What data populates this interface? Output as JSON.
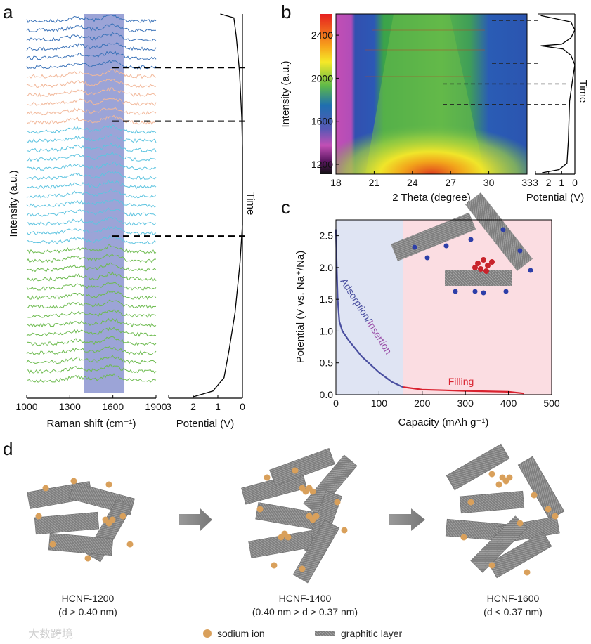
{
  "panels": {
    "a": "a",
    "b": "b",
    "c": "c",
    "d": "d"
  },
  "chart_data": [
    {
      "id": "a-raman",
      "type": "line",
      "xlabel": "Raman shift (cm⁻¹)",
      "ylabel": "Intensity (a.u.)",
      "xlim": [
        1000,
        1900
      ],
      "xticks": [
        "1000",
        "1300",
        "1600",
        "1900"
      ],
      "highlight_range": [
        1400,
        1680
      ],
      "highlight_color": "#7b86c9",
      "trace_groups": [
        {
          "name": "group1",
          "count": 6,
          "color": "#3a72b8"
        },
        {
          "name": "group2",
          "count": 6,
          "color": "#f2b89a"
        },
        {
          "name": "group3",
          "count": 13,
          "color": "#5ec4e0"
        },
        {
          "name": "group4",
          "count": 15,
          "color": "#6dbb4f"
        }
      ]
    },
    {
      "id": "a-potential",
      "type": "line",
      "xlabel": "Potential (V)",
      "side_label": "Time",
      "xlim": [
        3,
        0
      ],
      "xticks": [
        "3",
        "2",
        "1",
        "0"
      ],
      "points": [
        [
          0.9,
          0
        ],
        [
          0.35,
          0.01
        ],
        [
          0.25,
          0.06
        ],
        [
          0.12,
          0.15
        ],
        [
          0.03,
          0.27
        ],
        [
          0.0,
          0.35
        ],
        [
          0.0,
          0.55
        ],
        [
          0.1,
          0.65
        ],
        [
          0.3,
          0.78
        ],
        [
          0.55,
          0.88
        ],
        [
          0.75,
          0.95
        ],
        [
          1.2,
          0.985
        ],
        [
          2.0,
          1.0
        ]
      ],
      "dashed_times": [
        0.14,
        0.28,
        0.58
      ]
    },
    {
      "id": "b-heatmap",
      "type": "heatmap",
      "xlabel": "2 Theta (degree)",
      "ylabel": "Intensity (a.u.)",
      "xlim": [
        18,
        33
      ],
      "ylim": [
        1100,
        2600
      ],
      "xticks": [
        "18",
        "21",
        "24",
        "27",
        "30",
        "33"
      ],
      "yticks": [
        "1200",
        "1600",
        "2000",
        "2400"
      ],
      "peak_2theta": 24
    },
    {
      "id": "b-potential",
      "type": "line",
      "xlabel": "Potential (V)",
      "side_label": "Time",
      "xlim": [
        3,
        0
      ],
      "xticks": [
        "3",
        "2",
        "1",
        "0"
      ],
      "points": [
        [
          2.5,
          0
        ],
        [
          1.2,
          0.02
        ],
        [
          0.6,
          0.06
        ],
        [
          0.5,
          0.2
        ],
        [
          0.4,
          0.45
        ],
        [
          0.15,
          0.6
        ],
        [
          0.0,
          0.68
        ],
        [
          0.3,
          0.74
        ],
        [
          0.9,
          0.78
        ],
        [
          2.6,
          0.8
        ],
        [
          1.0,
          0.81
        ],
        [
          0.3,
          0.85
        ],
        [
          0.0,
          0.9
        ],
        [
          0.3,
          0.95
        ],
        [
          2.6,
          0.99
        ]
      ],
      "dashed_times": [
        0.43,
        0.56,
        0.69,
        0.96
      ]
    },
    {
      "id": "c-discharge",
      "type": "line",
      "xlabel": "Capacity (mAh g⁻¹)",
      "ylabel": "Potential (V vs. Na⁺/Na)",
      "xlim": [
        0,
        500
      ],
      "ylim": [
        0,
        2.75
      ],
      "xticks": [
        "0",
        "100",
        "200",
        "300",
        "400",
        "500"
      ],
      "yticks": [
        "0.0",
        "0.5",
        "1.0",
        "1.5",
        "2.0",
        "2.5"
      ],
      "regions": [
        {
          "range": [
            0,
            155
          ],
          "color": "#dfe4f3"
        },
        {
          "range": [
            155,
            500
          ],
          "color": "#fbdde2"
        }
      ],
      "series": [
        {
          "name": "Adsorption/Insertion",
          "color": "#4a4fa0",
          "points": [
            [
              0,
              2.6
            ],
            [
              2,
              2.0
            ],
            [
              4,
              1.5
            ],
            [
              8,
              1.15
            ],
            [
              15,
              1.0
            ],
            [
              30,
              0.85
            ],
            [
              60,
              0.6
            ],
            [
              100,
              0.35
            ],
            [
              130,
              0.2
            ],
            [
              155,
              0.12
            ]
          ]
        },
        {
          "name": "Filling",
          "color": "#d9222f",
          "points": [
            [
              155,
              0.12
            ],
            [
              200,
              0.08
            ],
            [
              300,
              0.06
            ],
            [
              400,
              0.045
            ],
            [
              435,
              0.02
            ]
          ]
        }
      ],
      "annotations": {
        "adsorption": "Adsorption/",
        "insertion": "Insertion",
        "filling": "Filling"
      }
    }
  ],
  "panel_d": {
    "samples": [
      {
        "name": "HCNF-1200",
        "condition": "(d > 0.40 nm)"
      },
      {
        "name": "HCNF-1400",
        "condition": "(0.40 nm > d > 0.37 nm)"
      },
      {
        "name": "HCNF-1600",
        "condition": "(d < 0.37 nm)"
      }
    ],
    "legend": {
      "sodium": "sodium ion",
      "graphitic": "graphitic layer"
    },
    "colors": {
      "sodium": "#d9a05b",
      "graphite": "#8a8a8a"
    }
  },
  "watermark": "大数跨境"
}
